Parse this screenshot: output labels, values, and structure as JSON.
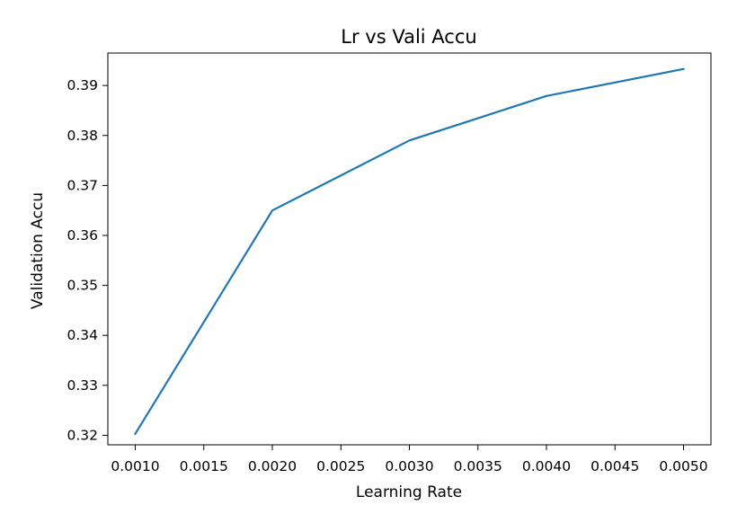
{
  "chart_data": {
    "type": "line",
    "title": "Lr vs Vali Accu",
    "xlabel": "Learning Rate",
    "ylabel": "Validation Accu",
    "x": [
      0.001,
      0.002,
      0.003,
      0.004,
      0.005
    ],
    "series": [
      {
        "values": [
          0.3203,
          0.365,
          0.379,
          0.3879,
          0.3933
        ],
        "color": "#1f77b4"
      }
    ],
    "xlim": [
      0.0008,
      0.0052
    ],
    "ylim": [
      0.3181,
      0.3965
    ],
    "xticks": [
      0.001,
      0.0015,
      0.002,
      0.0025,
      0.003,
      0.0035,
      0.004,
      0.0045,
      0.005
    ],
    "xtick_labels": [
      "0.0010",
      "0.0015",
      "0.0020",
      "0.0025",
      "0.0030",
      "0.0035",
      "0.0040",
      "0.0045",
      "0.0050"
    ],
    "yticks": [
      0.32,
      0.33,
      0.34,
      0.35,
      0.36,
      0.37,
      0.38,
      0.39
    ],
    "ytick_labels": [
      "0.32",
      "0.33",
      "0.34",
      "0.35",
      "0.36",
      "0.37",
      "0.38",
      "0.39"
    ],
    "grid": false,
    "legend": "none"
  }
}
